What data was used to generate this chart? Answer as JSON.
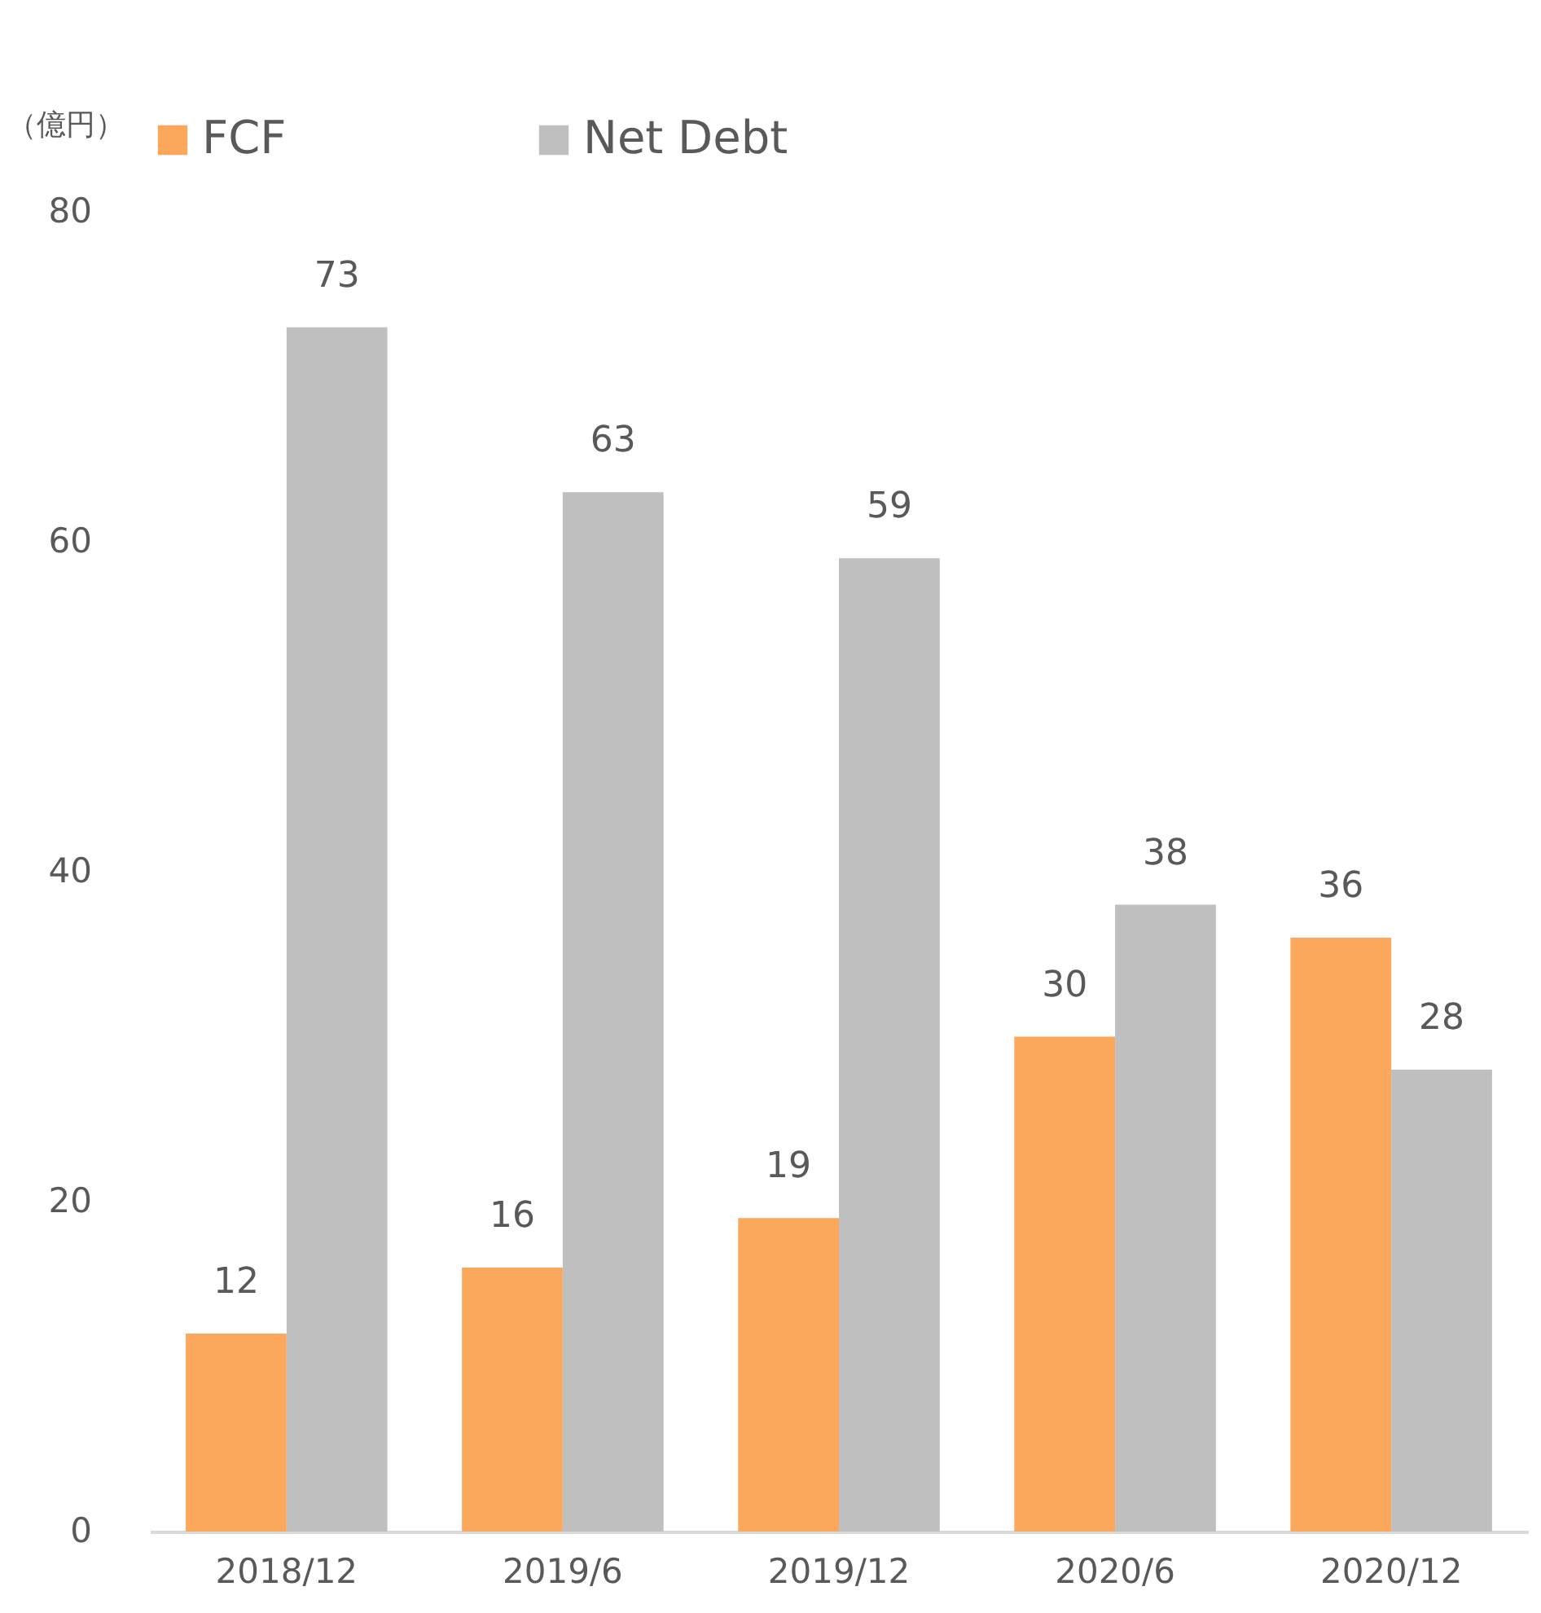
{
  "chart_data": {
    "type": "bar",
    "ylabel": "（億円）",
    "categories": [
      "2018/12",
      "2019/6",
      "2019/12",
      "2020/6",
      "2020/12"
    ],
    "series": [
      {
        "name": "FCF",
        "color": "#fca85c",
        "values": [
          12,
          16,
          19,
          30,
          36
        ]
      },
      {
        "name": "Net Debt",
        "color": "#bfbfbf",
        "values": [
          73,
          63,
          59,
          38,
          28
        ]
      }
    ],
    "ylim": [
      0,
      80
    ],
    "yticks": [
      0,
      20,
      40,
      60,
      80
    ],
    "data_labels": true,
    "legend": "top"
  }
}
